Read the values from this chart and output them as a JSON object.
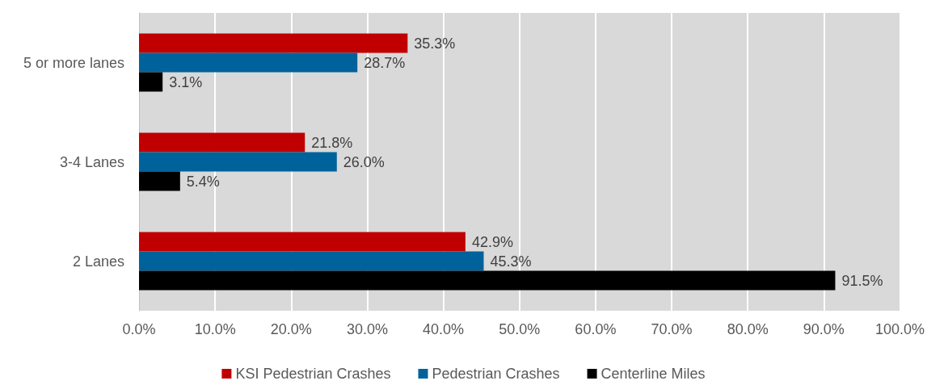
{
  "chart_data": {
    "type": "bar",
    "orientation": "horizontal",
    "categories": [
      "5 or more lanes",
      "3-4 Lanes",
      "2 Lanes"
    ],
    "series": [
      {
        "name": "KSI Pedestrian Crashes",
        "color": "#c00000",
        "values": [
          35.3,
          21.8,
          42.9
        ],
        "value_labels": [
          "35.3%",
          "21.8%",
          "42.9%"
        ]
      },
      {
        "name": "Pedestrian Crashes",
        "color": "#00629b",
        "values": [
          28.7,
          26.0,
          45.3
        ],
        "value_labels": [
          "28.7%",
          "26.0%",
          "45.3%"
        ]
      },
      {
        "name": "Centerline Miles",
        "color": "#000000",
        "values": [
          3.1,
          5.4,
          91.5
        ],
        "value_labels": [
          "3.1%",
          "5.4%",
          "91.5%"
        ]
      }
    ],
    "xlim": [
      0,
      100
    ],
    "xticks": [
      {
        "value": 0,
        "label": "0.0%"
      },
      {
        "value": 10,
        "label": "10.0%"
      },
      {
        "value": 20,
        "label": "20.0%"
      },
      {
        "value": 30,
        "label": "30.0%"
      },
      {
        "value": 40,
        "label": "40.0%"
      },
      {
        "value": 50,
        "label": "50.0%"
      },
      {
        "value": 60,
        "label": "60.0%"
      },
      {
        "value": 70,
        "label": "70.0%"
      },
      {
        "value": 80,
        "label": "80.0%"
      },
      {
        "value": 90,
        "label": "90.0%"
      },
      {
        "value": 100,
        "label": "100.0%"
      }
    ],
    "grid": "x",
    "legend": "bottom"
  }
}
